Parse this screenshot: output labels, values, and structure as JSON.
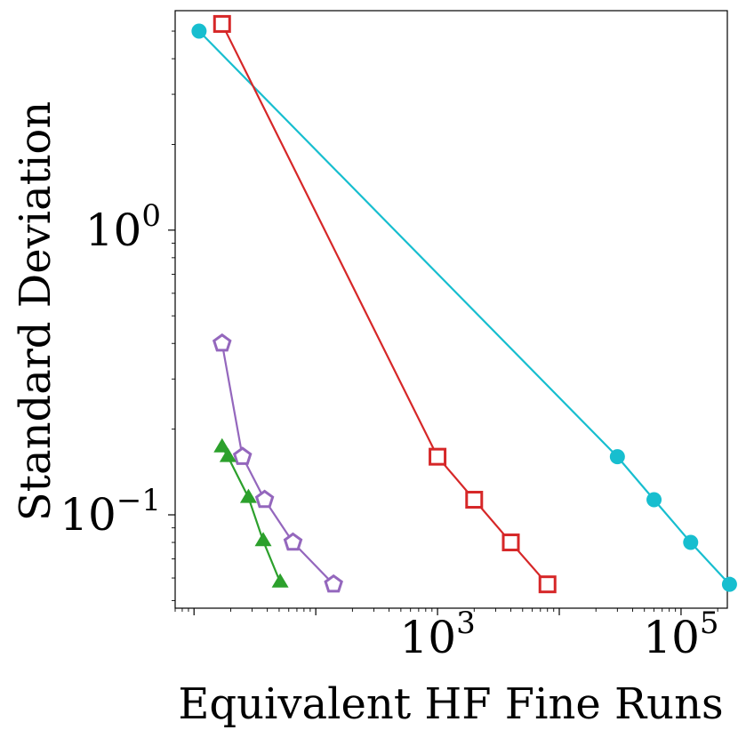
{
  "chart_data": {
    "type": "line",
    "title": "",
    "xlabel": "Equivalent HF Fine Runs",
    "ylabel": "Standard Deviation",
    "xscale": "log",
    "yscale": "log",
    "xlim": [
      7,
      240000
    ],
    "ylim": [
      0.047,
      5.9
    ],
    "grid": false,
    "x_ticks": [
      {
        "value": 1000,
        "base": "10",
        "exp": "3"
      },
      {
        "value": 100000,
        "base": "10",
        "exp": "5"
      }
    ],
    "y_ticks": [
      {
        "value": 1,
        "base": "10",
        "exp": "0"
      },
      {
        "value": 0.1,
        "base": "10",
        "exp": "−1"
      }
    ],
    "series": [
      {
        "name": "cyan-circles",
        "color": "#17becf",
        "marker": "circle",
        "x": [
          11,
          30000,
          60000,
          120000,
          250000
        ],
        "y": [
          5.0,
          0.16,
          0.113,
          0.08,
          0.057
        ]
      },
      {
        "name": "red-squares",
        "color": "#d62728",
        "marker": "square",
        "x": [
          17,
          1000,
          2000,
          4000,
          8000
        ],
        "y": [
          5.3,
          0.16,
          0.113,
          0.08,
          0.057
        ]
      },
      {
        "name": "purple-pentagons",
        "color": "#9467bd",
        "marker": "pentagon",
        "x": [
          17,
          25,
          38,
          65,
          140
        ],
        "y": [
          0.4,
          0.16,
          0.113,
          0.08,
          0.057
        ]
      },
      {
        "name": "green-triangles",
        "color": "#2ca02c",
        "marker": "triangle",
        "x": [
          17,
          19,
          28,
          37,
          51
        ],
        "y": [
          0.173,
          0.16,
          0.115,
          0.081,
          0.058
        ]
      }
    ]
  }
}
